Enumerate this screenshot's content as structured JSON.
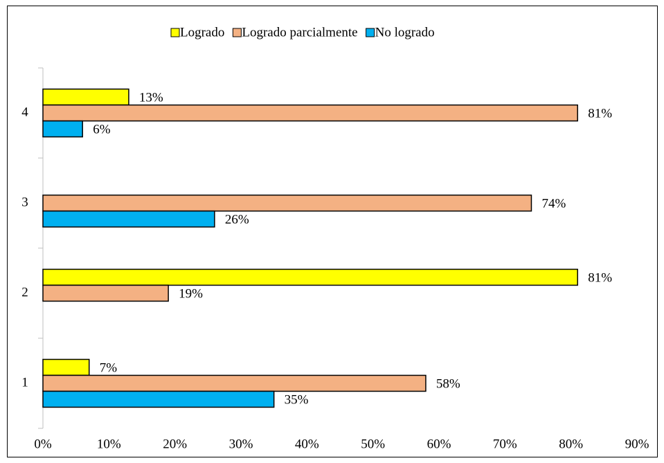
{
  "chart_data": {
    "type": "hbar",
    "categories": [
      "1",
      "2",
      "3",
      "4"
    ],
    "series": [
      {
        "name": "Logrado",
        "color": "#ffff00",
        "values": [
          7,
          81,
          null,
          13
        ],
        "value_labels": [
          "7%",
          "81%",
          null,
          "13%"
        ]
      },
      {
        "name": "Logrado parcialmente",
        "color": "#f4b183",
        "values": [
          58,
          19,
          74,
          81
        ],
        "value_labels": [
          "58%",
          "19%",
          "74%",
          "81%"
        ]
      },
      {
        "name": "No logrado",
        "color": "#00b0f0",
        "values": [
          35,
          null,
          26,
          6
        ],
        "value_labels": [
          "35%",
          null,
          "26%",
          "6%"
        ]
      }
    ],
    "xlim": [
      0,
      90
    ],
    "xticks": [
      {
        "value": 0,
        "label": "0%"
      },
      {
        "value": 10,
        "label": "10%"
      },
      {
        "value": 20,
        "label": "20%"
      },
      {
        "value": 30,
        "label": "30%"
      },
      {
        "value": 40,
        "label": "40%"
      },
      {
        "value": 50,
        "label": "50%"
      },
      {
        "value": 60,
        "label": "60%"
      },
      {
        "value": 70,
        "label": "70%"
      },
      {
        "value": 80,
        "label": "80%"
      },
      {
        "value": 90,
        "label": "90%"
      }
    ],
    "legend": "top"
  }
}
